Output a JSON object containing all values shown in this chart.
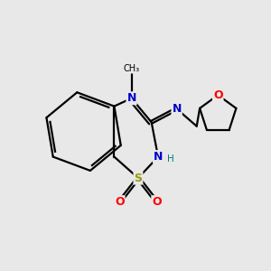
{
  "background_color": "#e8e8e8",
  "atom_colors": {
    "C": "#000000",
    "N": "#0000cc",
    "O": "#ff0000",
    "S": "#999900",
    "H": "#008080"
  },
  "bond_color": "#000000",
  "bond_width": 1.6,
  "figsize": [
    3.0,
    3.0
  ],
  "dpi": 100,
  "xlim": [
    0,
    10
  ],
  "ylim": [
    0,
    10
  ]
}
